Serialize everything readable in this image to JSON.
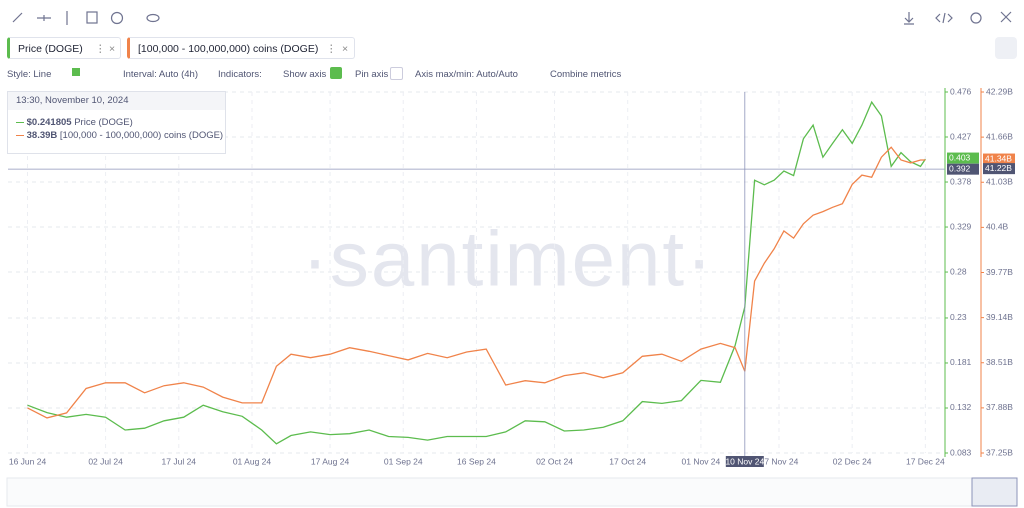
{
  "toolbar": {
    "style": "Style: Line",
    "interval": "Interval: Auto (4h)",
    "indicators": "Indicators:",
    "show_axis": "Show axis",
    "pin_axis": "Pin axis",
    "axis_minmax": "Axis max/min: Auto/Auto",
    "combine": "Combine metrics"
  },
  "tooltip": {
    "time": "13:30, November 10, 2024",
    "price": {
      "value": 0.241805,
      "label": "$0.241805"
    },
    "coins": {
      "value": 38.39,
      "label": "38.39B"
    }
  },
  "chart_data": {
    "type": "line",
    "watermark": "·santiment·",
    "x": [
      "2024-06-16",
      "2024-06-20",
      "2024-06-24",
      "2024-06-28",
      "2024-07-02",
      "2024-07-06",
      "2024-07-10",
      "2024-07-14",
      "2024-07-18",
      "2024-07-22",
      "2024-07-26",
      "2024-07-30",
      "2024-08-03",
      "2024-08-06",
      "2024-08-09",
      "2024-08-13",
      "2024-08-17",
      "2024-08-21",
      "2024-08-25",
      "2024-08-29",
      "2024-09-02",
      "2024-09-06",
      "2024-09-10",
      "2024-09-14",
      "2024-09-18",
      "2024-09-22",
      "2024-09-26",
      "2024-09-30",
      "2024-10-04",
      "2024-10-08",
      "2024-10-12",
      "2024-10-16",
      "2024-10-20",
      "2024-10-24",
      "2024-10-28",
      "2024-11-01",
      "2024-11-05",
      "2024-11-08",
      "2024-11-10",
      "2024-11-12",
      "2024-11-14",
      "2024-11-16",
      "2024-11-18",
      "2024-11-20",
      "2024-11-22",
      "2024-11-24",
      "2024-11-26",
      "2024-11-28",
      "2024-11-30",
      "2024-12-02",
      "2024-12-04",
      "2024-12-06",
      "2024-12-08",
      "2024-12-10",
      "2024-12-12",
      "2024-12-14",
      "2024-12-16",
      "2024-12-17"
    ],
    "xlim": [
      "2024-06-12",
      "2024-12-20"
    ],
    "xticks": [
      {
        "value": "2024-06-16",
        "label": "16 Jun 24"
      },
      {
        "value": "2024-07-02",
        "label": "02 Jul 24"
      },
      {
        "value": "2024-07-17",
        "label": "17 Jul 24"
      },
      {
        "value": "2024-08-01",
        "label": "01 Aug 24"
      },
      {
        "value": "2024-08-17",
        "label": "17 Aug 24"
      },
      {
        "value": "2024-09-01",
        "label": "01 Sep 24"
      },
      {
        "value": "2024-09-16",
        "label": "16 Sep 24"
      },
      {
        "value": "2024-10-02",
        "label": "02 Oct 24"
      },
      {
        "value": "2024-10-17",
        "label": "17 Oct 24"
      },
      {
        "value": "2024-11-01",
        "label": "01 Nov 24"
      },
      {
        "value": "2024-11-17",
        "label": "17 Nov 24"
      },
      {
        "value": "2024-12-02",
        "label": "02 Dec 24"
      },
      {
        "value": "2024-12-17",
        "label": "17 Dec 24"
      }
    ],
    "ylim": [
      0.083,
      0.476
    ],
    "yticks": [
      0.083,
      0.132,
      0.181,
      0.23,
      0.28,
      0.329,
      0.378,
      0.427,
      0.476
    ],
    "y2lim": [
      37.25,
      42.29
    ],
    "y2ticks": [
      {
        "value": 37.25,
        "label": "37.25B"
      },
      {
        "value": 37.88,
        "label": "37.88B"
      },
      {
        "value": 38.51,
        "label": "38.51B"
      },
      {
        "value": 39.14,
        "label": "39.14B"
      },
      {
        "value": 39.77,
        "label": "39.77B"
      },
      {
        "value": 40.4,
        "label": "40.4B"
      },
      {
        "value": 41.03,
        "label": "41.03B"
      },
      {
        "value": 41.66,
        "label": "41.66B"
      },
      {
        "value": 42.29,
        "label": "42.29B"
      }
    ],
    "grid": true,
    "crosshair": {
      "x": {
        "value": "2024-11-10",
        "label": "10 Nov 24"
      },
      "y": 0.392,
      "y2": {
        "value": 41.22,
        "label": "41.22B"
      }
    },
    "last": {
      "y": 0.403,
      "y2": {
        "value": 41.34,
        "label": "41.34B"
      }
    },
    "series": [
      {
        "name": "Price (DOGE)",
        "color": "#5cbc4e",
        "axis": "y",
        "values": [
          0.135,
          0.127,
          0.122,
          0.125,
          0.122,
          0.108,
          0.11,
          0.118,
          0.122,
          0.135,
          0.128,
          0.123,
          0.108,
          0.093,
          0.102,
          0.106,
          0.103,
          0.104,
          0.108,
          0.101,
          0.1,
          0.097,
          0.101,
          0.101,
          0.101,
          0.106,
          0.118,
          0.117,
          0.107,
          0.108,
          0.111,
          0.118,
          0.139,
          0.137,
          0.14,
          0.162,
          0.16,
          0.2,
          0.242,
          0.38,
          0.375,
          0.38,
          0.39,
          0.385,
          0.425,
          0.44,
          0.405,
          0.42,
          0.435,
          0.42,
          0.44,
          0.465,
          0.45,
          0.395,
          0.41,
          0.4,
          0.395,
          0.403
        ]
      },
      {
        "name": "[100,000 - 100,000,000) coins (DOGE)",
        "color": "#f0834a",
        "axis": "y2",
        "values": [
          37.88,
          37.74,
          37.81,
          38.15,
          38.23,
          38.23,
          38.09,
          38.19,
          38.23,
          38.17,
          38.03,
          37.95,
          37.95,
          38.46,
          38.63,
          38.58,
          38.63,
          38.72,
          38.67,
          38.61,
          38.55,
          38.64,
          38.58,
          38.66,
          38.7,
          38.2,
          38.26,
          38.23,
          38.33,
          38.37,
          38.3,
          38.37,
          38.6,
          38.63,
          38.53,
          38.7,
          38.78,
          38.72,
          38.39,
          39.65,
          39.9,
          40.1,
          40.35,
          40.25,
          40.45,
          40.57,
          40.62,
          40.68,
          40.73,
          41.0,
          41.13,
          41.1,
          41.38,
          41.52,
          41.34,
          41.3,
          41.34,
          41.34
        ]
      }
    ]
  }
}
